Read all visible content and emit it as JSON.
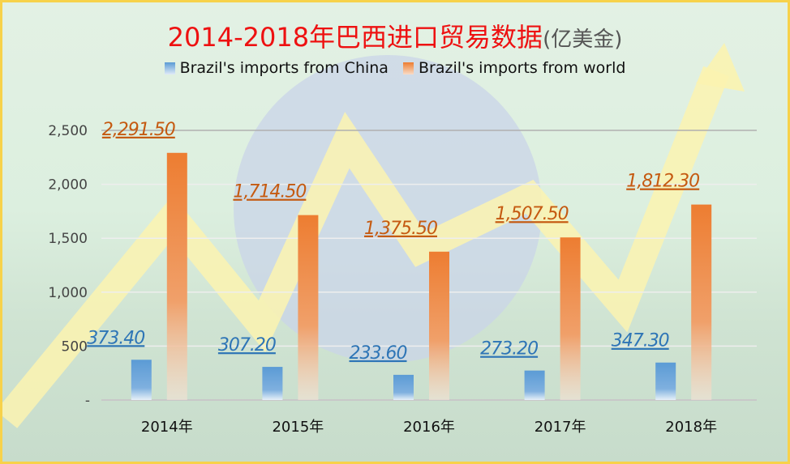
{
  "chart_data": {
    "type": "bar",
    "title": "2014-2018年巴西进口贸易数据",
    "title_unit": "(亿美金)",
    "categories": [
      "2014年",
      "2015年",
      "2016年",
      "2017年",
      "2018年"
    ],
    "series": [
      {
        "name": "Brazil's imports from China",
        "values": [
          373.4,
          307.2,
          233.6,
          273.2,
          347.3
        ],
        "labels": [
          "373.40",
          "307.20",
          "233.60",
          "273.20",
          "347.30"
        ],
        "color": "#5b9bd5"
      },
      {
        "name": "Brazil's imports from world",
        "values": [
          2291.5,
          1714.5,
          1375.5,
          1507.5,
          1812.3
        ],
        "labels": [
          "2,291.50",
          "1,714.50",
          "1,375.50",
          "1,507.50",
          "1,812.30"
        ],
        "color": "#ed7d31"
      }
    ],
    "yticks": [
      "-",
      "500",
      "1,000",
      "1,500",
      "2,000",
      "2,500"
    ],
    "ytick_values": [
      0,
      500,
      1000,
      1500,
      2000,
      2500
    ],
    "ylim": [
      0,
      2500
    ],
    "grid": true,
    "legend_position": "top"
  }
}
